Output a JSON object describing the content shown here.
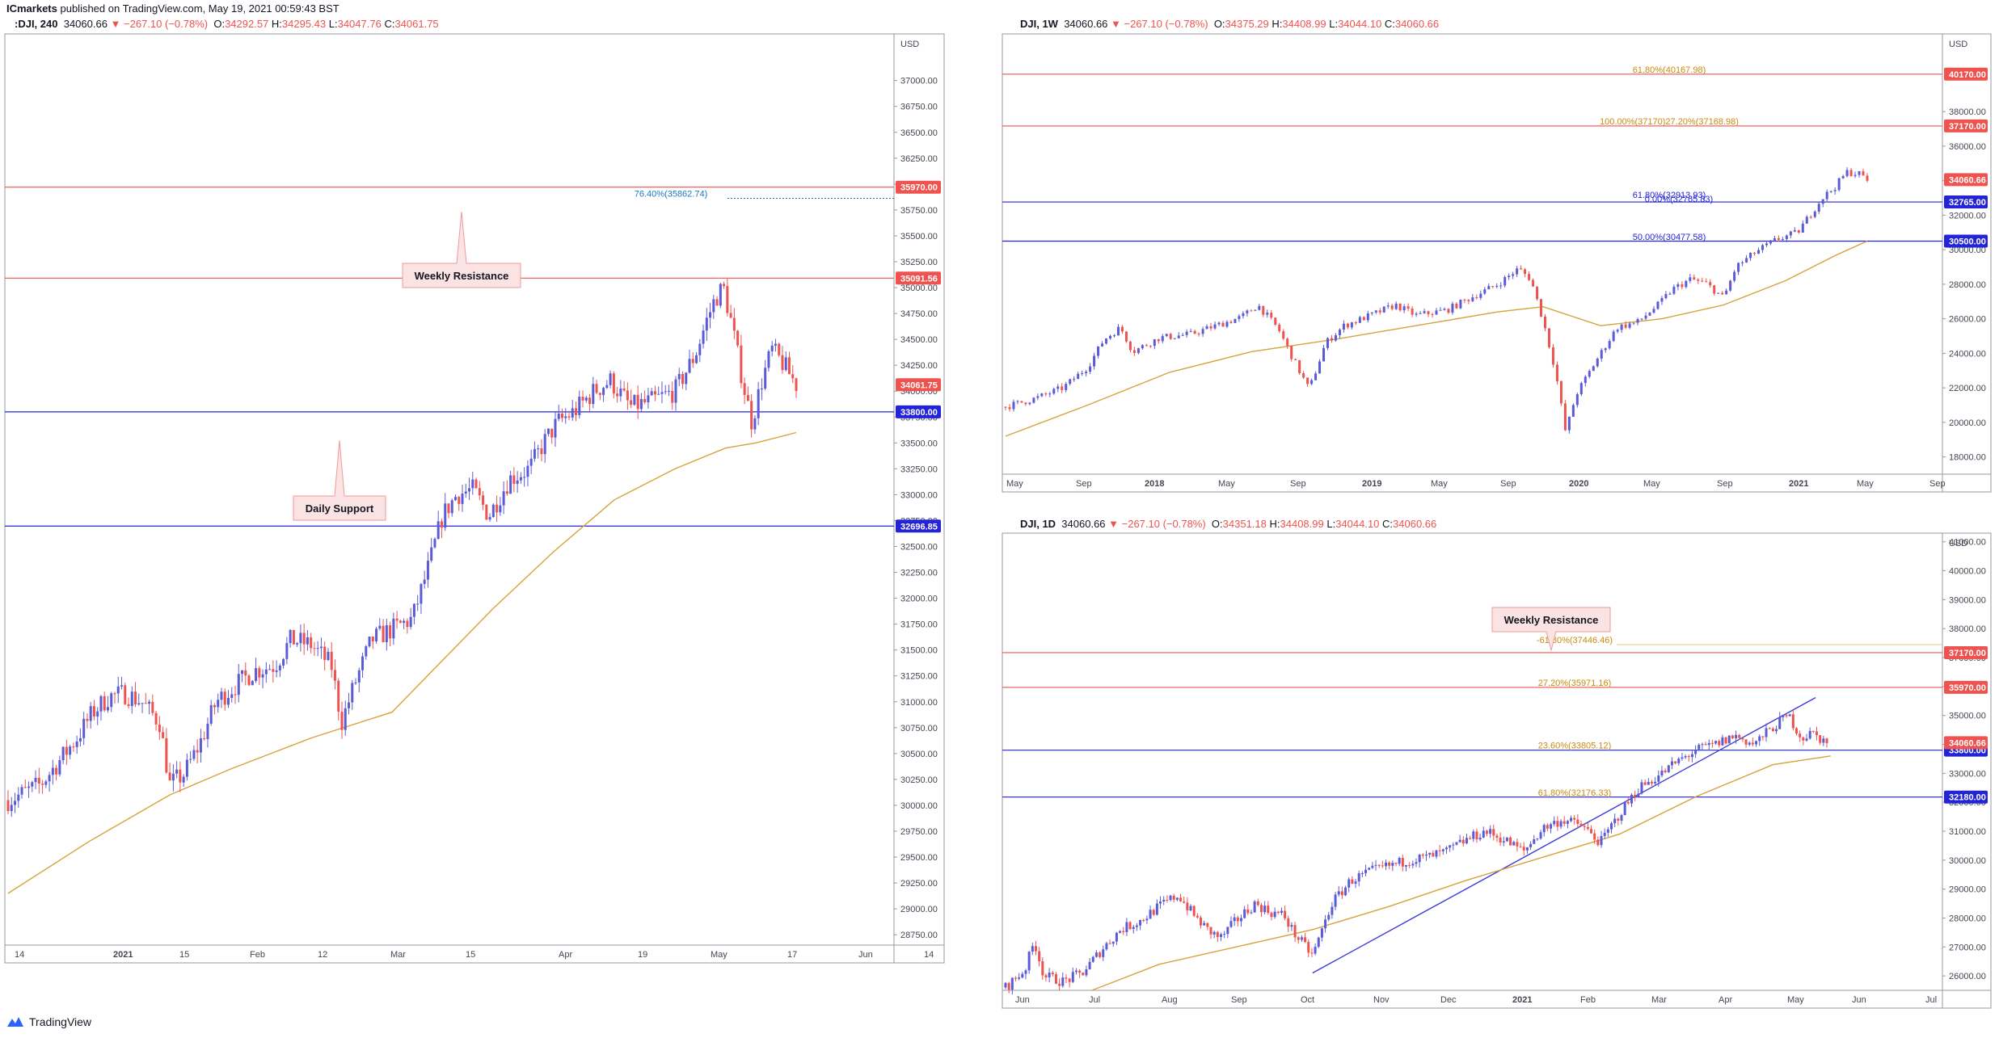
{
  "publisher": {
    "name": "ICmarkets",
    "text": " published on TradingView.com, May 19, 2021 00:59:43 BST"
  },
  "footer": {
    "brand": "TradingView"
  },
  "colors": {
    "up": "#5b5bd6",
    "down": "#ef5350",
    "ma": "#d4a43a",
    "resistance": "#ef5350",
    "support": "#2323d8",
    "fib": "#c98a0c",
    "fib_blue": "#1f78c1"
  },
  "chart_data": [
    {
      "id": "dji-240",
      "type": "line",
      "header": {
        "symbol": ":DJI, 240",
        "last": "34060.66",
        "arrow": "▼",
        "change": "−267.10 (−0.78%)",
        "o_label": "O:",
        "o": "34292.57",
        "h_label": "H:",
        "h": "34295.43",
        "l_label": "L:",
        "l": "34047.76",
        "c_label": "C:",
        "c": "34061.75"
      },
      "currency": "USD",
      "ylim": [
        28650,
        37450
      ],
      "yticks": [
        "37000.00",
        "36750.00",
        "36500.00",
        "36250.00",
        "36000.00",
        "35750.00",
        "35500.00",
        "35250.00",
        "35000.00",
        "34750.00",
        "34500.00",
        "34250.00",
        "34000.00",
        "33750.00",
        "33500.00",
        "33250.00",
        "33000.00",
        "32750.00",
        "32500.00",
        "32250.00",
        "32000.00",
        "31750.00",
        "31500.00",
        "31250.00",
        "31000.00",
        "30750.00",
        "30500.00",
        "30250.00",
        "30000.00",
        "29750.00",
        "29500.00",
        "29250.00",
        "29000.00",
        "28750.00"
      ],
      "xticks": [
        "14",
        "2021",
        "15",
        "Feb",
        "12",
        "Mar",
        "15",
        "Apr",
        "19",
        "May",
        "17",
        "Jun",
        "14"
      ],
      "hlines": [
        {
          "label": "35970.00",
          "value": 35970,
          "kind": "resistance"
        },
        {
          "label": "35091.56",
          "value": 35091.56,
          "kind": "resistance"
        },
        {
          "label": "33800.00",
          "value": 33800,
          "kind": "support"
        },
        {
          "label": "32696.85",
          "value": 32696.85,
          "kind": "support"
        }
      ],
      "fib": [
        {
          "text": "76.40%(35862.74)",
          "value": 35862.74
        }
      ],
      "price_label": {
        "text": "34061.75",
        "value": 34061.75
      },
      "callouts": [
        {
          "text": "Weekly Resistance"
        },
        {
          "text": "Daily Support"
        }
      ],
      "series": [
        {
          "points": [
            [
              0,
              30050
            ],
            [
              8,
              30120
            ],
            [
              16,
              30200
            ],
            [
              25,
              30420
            ],
            [
              34,
              30650
            ],
            [
              42,
              30900
            ],
            [
              50,
              31050
            ],
            [
              58,
              31080
            ],
            [
              66,
              31000
            ],
            [
              75,
              30800
            ],
            [
              80,
              30200
            ],
            [
              87,
              30300
            ],
            [
              95,
              30600
            ],
            [
              103,
              31000
            ],
            [
              112,
              31150
            ],
            [
              122,
              31300
            ],
            [
              132,
              31350
            ],
            [
              140,
              31600
            ],
            [
              150,
              31550
            ],
            [
              160,
              31350
            ],
            [
              165,
              30800
            ],
            [
              172,
              31200
            ],
            [
              180,
              31600
            ],
            [
              190,
              31700
            ],
            [
              200,
              31800
            ],
            [
              208,
              32300
            ],
            [
              215,
              32800
            ],
            [
              222,
              33000
            ],
            [
              230,
              33050
            ],
            [
              238,
              32800
            ],
            [
              248,
              33150
            ],
            [
              258,
              33250
            ],
            [
              265,
              33500
            ],
            [
              272,
              33700
            ],
            [
              280,
              33800
            ],
            [
              290,
              34000
            ],
            [
              298,
              34100
            ],
            [
              308,
              33850
            ],
            [
              318,
              33900
            ],
            [
              330,
              34000
            ],
            [
              340,
              34350
            ],
            [
              346,
              34700
            ],
            [
              350,
              34900
            ],
            [
              354,
              35000
            ],
            [
              358,
              34650
            ],
            [
              364,
              34050
            ],
            [
              368,
              33700
            ],
            [
              373,
              34100
            ],
            [
              378,
              34400
            ],
            [
              384,
              34250
            ],
            [
              390,
              34061.75
            ]
          ]
        }
      ],
      "ma": [
        [
          0,
          29150
        ],
        [
          40,
          29650
        ],
        [
          80,
          30100
        ],
        [
          110,
          30350
        ],
        [
          150,
          30650
        ],
        [
          190,
          30900
        ],
        [
          210,
          31300
        ],
        [
          240,
          31900
        ],
        [
          270,
          32450
        ],
        [
          300,
          32950
        ],
        [
          330,
          33250
        ],
        [
          355,
          33450
        ],
        [
          370,
          33500
        ],
        [
          390,
          33600
        ]
      ]
    },
    {
      "id": "dji-1w",
      "type": "line",
      "header": {
        "symbol": "DJI, 1W",
        "last": "34060.66",
        "arrow": "▼",
        "change": "−267.10 (−0.78%)",
        "o_label": "O:",
        "o": "34375.29",
        "h_label": "H:",
        "h": "34408.99",
        "l_label": "L:",
        "l": "34044.10",
        "c_label": "C:",
        "c": "34060.66"
      },
      "currency": "USD",
      "ylim": [
        17000,
        42500
      ],
      "yticks": [
        "38000.00",
        "36000.00",
        "34000.00",
        "32000.00",
        "30000.00",
        "28000.00",
        "26000.00",
        "24000.00",
        "22000.00",
        "20000.00",
        "18000.00"
      ],
      "xticks": [
        "May",
        "Sep",
        "2018",
        "May",
        "Sep",
        "2019",
        "May",
        "Sep",
        "2020",
        "May",
        "Sep",
        "2021",
        "May",
        "Sep"
      ],
      "hlines": [
        {
          "label": "40170.00",
          "value": 40170,
          "kind": "resistance"
        },
        {
          "label": "37170.00",
          "value": 37170,
          "kind": "resistance"
        },
        {
          "label": "32765.00",
          "value": 32765,
          "kind": "support"
        },
        {
          "label": "30500.00",
          "value": 30500,
          "kind": "support"
        }
      ],
      "fib": [
        {
          "text": "61.80%(40167.98)",
          "value": 40167.98
        },
        {
          "text": "100.00%(37170)27.20%(37168.98)",
          "value": 37170
        },
        {
          "text": "61.80%(32913.93)",
          "value": 32913.93
        },
        {
          "text": "0.00%(32765.83)",
          "value": 32765.83
        },
        {
          "text": "50.00%(30477.58)",
          "value": 30477.58
        }
      ],
      "price_label": {
        "text": "34060.66",
        "value": 34060.66
      },
      "series": [
        {
          "points": [
            [
              0,
              20900
            ],
            [
              15,
              21400
            ],
            [
              28,
              22000
            ],
            [
              40,
              23200
            ],
            [
              48,
              24800
            ],
            [
              56,
              25500
            ],
            [
              62,
              24100
            ],
            [
              75,
              24900
            ],
            [
              90,
              25100
            ],
            [
              105,
              25700
            ],
            [
              115,
              26100
            ],
            [
              123,
              26800
            ],
            [
              133,
              25400
            ],
            [
              140,
              23700
            ],
            [
              148,
              21900
            ],
            [
              156,
              24600
            ],
            [
              165,
              25600
            ],
            [
              180,
              26300
            ],
            [
              190,
              26800
            ],
            [
              200,
              26200
            ],
            [
              215,
              26500
            ],
            [
              228,
              27300
            ],
            [
              240,
              28000
            ],
            [
              250,
              28900
            ],
            [
              256,
              28300
            ],
            [
              262,
              25900
            ],
            [
              268,
              23000
            ],
            [
              273,
              19400
            ],
            [
              278,
              21600
            ],
            [
              288,
              23600
            ],
            [
              298,
              25500
            ],
            [
              308,
              25800
            ],
            [
              318,
              26800
            ],
            [
              325,
              27700
            ],
            [
              334,
              28300
            ],
            [
              342,
              28000
            ],
            [
              350,
              27200
            ],
            [
              356,
              29000
            ],
            [
              366,
              29900
            ],
            [
              376,
              30600
            ],
            [
              386,
              31000
            ],
            [
              392,
              32000
            ],
            [
              398,
              33000
            ],
            [
              404,
              33600
            ],
            [
              410,
              34500
            ],
            [
              416,
              34400
            ],
            [
              420,
              34060.66
            ]
          ]
        }
      ],
      "ma": [
        [
          0,
          19200
        ],
        [
          40,
          21000
        ],
        [
          80,
          22900
        ],
        [
          120,
          24100
        ],
        [
          160,
          24800
        ],
        [
          200,
          25600
        ],
        [
          240,
          26400
        ],
        [
          262,
          26700
        ],
        [
          290,
          25600
        ],
        [
          320,
          26000
        ],
        [
          350,
          26800
        ],
        [
          380,
          28200
        ],
        [
          405,
          29700
        ],
        [
          420,
          30500
        ]
      ]
    },
    {
      "id": "dji-1d",
      "type": "line",
      "header": {
        "symbol": "DJI, 1D",
        "last": "34060.66",
        "arrow": "▼",
        "change": "−267.10 (−0.78%)",
        "o_label": "O:",
        "o": "34351.18",
        "h_label": "H:",
        "h": "34408.99",
        "l_label": "L:",
        "l": "34044.10",
        "c_label": "C:",
        "c": "34060.66"
      },
      "currency": "USD",
      "ylim": [
        25500,
        41300
      ],
      "yticks": [
        "41000.00",
        "40000.00",
        "39000.00",
        "38000.00",
        "37000.00",
        "36000.00",
        "35000.00",
        "34000.00",
        "33000.00",
        "32000.00",
        "31000.00",
        "30000.00",
        "29000.00",
        "28000.00",
        "27000.00",
        "26000.00"
      ],
      "xticks": [
        "Jun",
        "Jul",
        "Aug",
        "Sep",
        "Oct",
        "Nov",
        "Dec",
        "2021",
        "Feb",
        "Mar",
        "Apr",
        "May",
        "Jun",
        "Jul"
      ],
      "hlines": [
        {
          "label": "37170.00",
          "value": 37170,
          "kind": "resistance"
        },
        {
          "label": "35970.00",
          "value": 35970,
          "kind": "resistance"
        },
        {
          "label": "33800.00",
          "value": 33800,
          "kind": "support"
        },
        {
          "label": "32180.00",
          "value": 32180,
          "kind": "support"
        }
      ],
      "fib": [
        {
          "text": "-61.80%(37446.46)",
          "value": 37446.46
        },
        {
          "text": "27.20%(35971.16)",
          "value": 35971.16
        },
        {
          "text": "23.60%(33805.12)",
          "value": 33805.12
        },
        {
          "text": "61.80%(32176.33)",
          "value": 32176.33
        }
      ],
      "price_label": {
        "text": "34060.66",
        "value": 34060.66
      },
      "callouts": [
        {
          "text": "Weekly Resistance"
        }
      ],
      "trendline": [
        [
          16.0,
          26100
        ],
        [
          38.0,
          34500
        ]
      ],
      "series": [
        {
          "points": [
            [
              0,
              25600
            ],
            [
              1.0,
              26200
            ],
            [
              1.5,
              27200
            ],
            [
              2.0,
              26000
            ],
            [
              3.0,
              25800
            ],
            [
              4.0,
              26100
            ],
            [
              5.0,
              26900
            ],
            [
              6.0,
              27600
            ],
            [
              7.0,
              27900
            ],
            [
              8.0,
              28400
            ],
            [
              9.0,
              28800
            ],
            [
              9.8,
              28100
            ],
            [
              10.5,
              27600
            ],
            [
              11.2,
              27300
            ],
            [
              12.0,
              27900
            ],
            [
              13.0,
              28500
            ],
            [
              13.8,
              28200
            ],
            [
              14.5,
              28100
            ],
            [
              15.0,
              27500
            ],
            [
              16.0,
              26700
            ],
            [
              17.0,
              28500
            ],
            [
              18.0,
              29300
            ],
            [
              19.0,
              29600
            ],
            [
              20.0,
              29800
            ],
            [
              21.0,
              30000
            ],
            [
              22.0,
              30100
            ],
            [
              23.0,
              30300
            ],
            [
              24.0,
              30700
            ],
            [
              25.0,
              31000
            ],
            [
              26.0,
              30700
            ],
            [
              27.0,
              30300
            ],
            [
              28.0,
              31100
            ],
            [
              29.0,
              31400
            ],
            [
              30.0,
              31200
            ],
            [
              31.0,
              30600
            ],
            [
              32.0,
              31600
            ],
            [
              33.0,
              32500
            ],
            [
              34.0,
              32900
            ],
            [
              35.0,
              33400
            ],
            [
              36.0,
              33800
            ],
            [
              37.0,
              34000
            ],
            [
              38.0,
              34300
            ],
            [
              39.0,
              34000
            ],
            [
              40.0,
              34600
            ],
            [
              40.8,
              35000
            ],
            [
              41.5,
              34200
            ],
            [
              42.0,
              34400
            ],
            [
              42.8,
              34060.66
            ]
          ]
        }
      ],
      "ma": [
        [
          4.5,
          25500
        ],
        [
          8.0,
          26400
        ],
        [
          12.0,
          27000
        ],
        [
          16.0,
          27600
        ],
        [
          20.0,
          28400
        ],
        [
          24.0,
          29300
        ],
        [
          28.0,
          30100
        ],
        [
          32.0,
          30900
        ],
        [
          36.0,
          32200
        ],
        [
          40.0,
          33300
        ],
        [
          43.0,
          33600
        ]
      ]
    }
  ]
}
